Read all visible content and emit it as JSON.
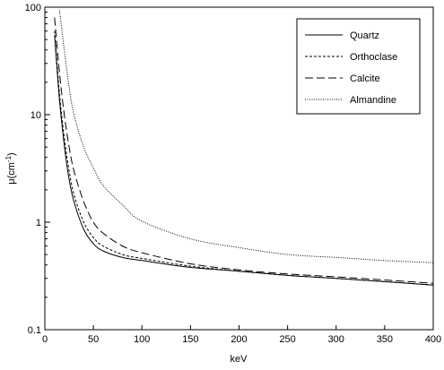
{
  "chart_data": {
    "type": "line",
    "title": "",
    "xlabel": "keV",
    "ylabel": "μ(cm",
    "ylabel_superscript": "-1",
    "ylabel_suffix": ")",
    "xlim": [
      0,
      400
    ],
    "ylim": [
      0.1,
      100
    ],
    "y_scale": "log",
    "grid": false,
    "legend_position": "top-right",
    "x_ticks": [
      "0",
      "50",
      "100",
      "150",
      "200",
      "250",
      "300",
      "350",
      "400"
    ],
    "y_ticks": [
      "0.1",
      "1",
      "10",
      "100"
    ],
    "series": [
      {
        "name": "Quartz",
        "style": "solid",
        "x": [
          10,
          15,
          20,
          25,
          30,
          40,
          50,
          60,
          80,
          100,
          150,
          200,
          250,
          300,
          350,
          400
        ],
        "y": [
          55,
          14,
          5.2,
          2.5,
          1.55,
          0.86,
          0.63,
          0.54,
          0.47,
          0.44,
          0.38,
          0.35,
          0.32,
          0.3,
          0.28,
          0.26
        ]
      },
      {
        "name": "Orthoclase",
        "style": "short-dash",
        "x": [
          10,
          15,
          20,
          25,
          30,
          40,
          50,
          60,
          80,
          100,
          150,
          200,
          250,
          300,
          350,
          400
        ],
        "y": [
          60,
          16,
          6.1,
          3.0,
          1.8,
          1.0,
          0.72,
          0.6,
          0.5,
          0.46,
          0.39,
          0.35,
          0.32,
          0.3,
          0.28,
          0.26
        ]
      },
      {
        "name": "Calcite",
        "style": "long-dash",
        "x": [
          10,
          15,
          20,
          25,
          30,
          40,
          50,
          60,
          80,
          100,
          150,
          200,
          250,
          300,
          350,
          400
        ],
        "y": [
          80,
          25,
          10,
          5.0,
          3.0,
          1.55,
          1.0,
          0.79,
          0.6,
          0.52,
          0.41,
          0.36,
          0.33,
          0.31,
          0.29,
          0.27
        ]
      },
      {
        "name": "Almandine",
        "style": "dotted",
        "x": [
          15,
          20,
          25,
          30,
          40,
          50,
          60,
          80,
          100,
          150,
          200,
          250,
          300,
          350,
          400
        ],
        "y": [
          95,
          40,
          18,
          10,
          5.0,
          3.2,
          2.2,
          1.45,
          1.02,
          0.7,
          0.58,
          0.5,
          0.47,
          0.44,
          0.42
        ]
      }
    ]
  }
}
